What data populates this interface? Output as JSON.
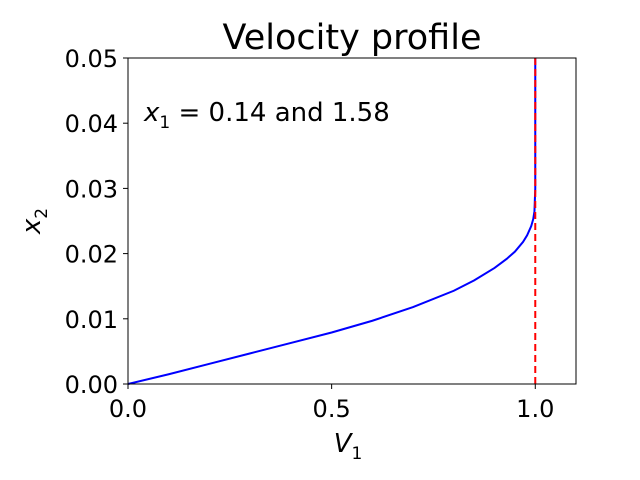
{
  "chart_data": {
    "type": "line",
    "title": "Velocity profile",
    "xlabel": "V",
    "xlabel_sub": "1",
    "ylabel": "x",
    "ylabel_sub": "2",
    "annotation": {
      "var": "x",
      "sub": "1",
      "text": " = 0.14 and 1.58"
    },
    "xlim": [
      0.0,
      1.1
    ],
    "ylim": [
      0.0,
      0.05
    ],
    "xticks": [
      0.0,
      0.5,
      1.0
    ],
    "xtick_labels": [
      "0.0",
      "0.5",
      "1.0"
    ],
    "yticks": [
      0.0,
      0.01,
      0.02,
      0.03,
      0.04,
      0.05
    ],
    "ytick_labels": [
      "0.00",
      "0.01",
      "0.02",
      "0.03",
      "0.04",
      "0.05"
    ],
    "grid": false,
    "series": [
      {
        "color": "#0000ff",
        "style": "solid",
        "x": [
          0.0,
          0.1,
          0.2,
          0.3,
          0.4,
          0.5,
          0.6,
          0.7,
          0.8,
          0.85,
          0.9,
          0.93,
          0.95,
          0.97,
          0.98,
          0.99,
          0.995,
          0.998,
          1.0,
          1.0
        ],
        "y": [
          0.0,
          0.0015,
          0.0031,
          0.0047,
          0.0063,
          0.0079,
          0.0097,
          0.0118,
          0.0143,
          0.0159,
          0.0178,
          0.0192,
          0.0203,
          0.0218,
          0.0228,
          0.0242,
          0.0253,
          0.0265,
          0.03,
          0.05
        ]
      },
      {
        "color": "#ff0000",
        "style": "dashed",
        "x": [
          1.0,
          1.0
        ],
        "y": [
          0.0,
          0.05
        ]
      }
    ]
  }
}
